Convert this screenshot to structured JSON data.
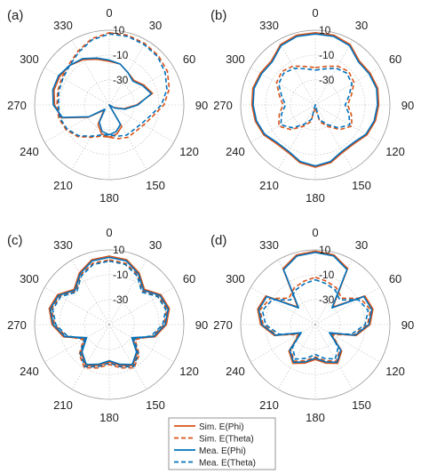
{
  "figure": {
    "legend_entries": [
      {
        "label": "Sim. E(Phi)",
        "color": "#d95319",
        "dash": "solid"
      },
      {
        "label": "Sim. E(Theta)",
        "color": "#d95319",
        "dash": "dashed"
      },
      {
        "label": "Mea. E(Phi)",
        "color": "#0072bd",
        "dash": "solid"
      },
      {
        "label": "Mea. E(Theta)",
        "color": "#0072bd",
        "dash": "dashed"
      }
    ]
  },
  "chart_data": [
    {
      "type": "polar-line",
      "panel_label": "(a)",
      "theta_ticks": [
        "0",
        "30",
        "60",
        "90",
        "120",
        "150",
        "180",
        "210",
        "240",
        "270",
        "300",
        "330"
      ],
      "r_ticks": [
        "10",
        "-10",
        "-30"
      ],
      "r_tick_values": [
        10,
        -10,
        -30
      ],
      "rlim": [
        -50,
        10
      ],
      "grid": true,
      "series": [
        {
          "name": "Sim. E(Phi)",
          "angles": [
            0,
            15,
            30,
            45,
            60,
            75,
            90,
            105,
            120,
            135,
            150,
            165,
            180,
            195,
            210,
            225,
            240,
            255,
            270,
            285,
            300,
            315,
            330,
            345
          ],
          "values": [
            -15,
            -16,
            -20,
            -22,
            -18,
            -14,
            -28,
            -38,
            -46,
            -50,
            -30,
            -26,
            -24,
            -26,
            -32,
            -44,
            -30,
            -10,
            -6,
            -4,
            -4,
            -5,
            -8,
            -12
          ]
        },
        {
          "name": "Sim. E(Theta)",
          "angles": [
            0,
            15,
            30,
            45,
            60,
            75,
            90,
            105,
            120,
            135,
            150,
            165,
            180,
            195,
            210,
            225,
            240,
            255,
            270,
            285,
            300,
            315,
            330,
            345
          ],
          "values": [
            8,
            8,
            7,
            6,
            4,
            0,
            -6,
            -14,
            -18,
            -20,
            -20,
            -22,
            -24,
            -24,
            -20,
            -14,
            -10,
            -8,
            -8,
            -7,
            -6,
            -4,
            0,
            5
          ]
        },
        {
          "name": "Mea. E(Phi)",
          "angles": [
            0,
            15,
            30,
            45,
            60,
            75,
            90,
            105,
            120,
            135,
            150,
            165,
            180,
            195,
            210,
            225,
            240,
            255,
            270,
            285,
            300,
            315,
            330,
            345
          ],
          "values": [
            -14,
            -16,
            -20,
            -23,
            -19,
            -15,
            -27,
            -37,
            -45,
            -50,
            -32,
            -28,
            -26,
            -28,
            -34,
            -45,
            -31,
            -11,
            -5,
            -3,
            -3,
            -5,
            -7,
            -11
          ]
        },
        {
          "name": "Mea. E(Theta)",
          "angles": [
            0,
            15,
            30,
            45,
            60,
            75,
            90,
            105,
            120,
            135,
            150,
            165,
            180,
            195,
            210,
            225,
            240,
            255,
            270,
            285,
            300,
            315,
            330,
            345
          ],
          "values": [
            7,
            7,
            6,
            5,
            2,
            -2,
            -8,
            -16,
            -20,
            -22,
            -22,
            -24,
            -26,
            -25,
            -21,
            -15,
            -11,
            -9,
            -9,
            -8,
            -7,
            -5,
            -1,
            4
          ]
        }
      ]
    },
    {
      "type": "polar-line",
      "panel_label": "(b)",
      "theta_ticks": [
        "0",
        "30",
        "60",
        "90",
        "120",
        "150",
        "180",
        "210",
        "240",
        "270",
        "300",
        "330"
      ],
      "r_ticks": [
        "10",
        "-10",
        "-30"
      ],
      "r_tick_values": [
        10,
        -10,
        -30
      ],
      "rlim": [
        -50,
        10
      ],
      "grid": true,
      "series": [
        {
          "name": "Sim. E(Phi)",
          "angles": [
            0,
            15,
            30,
            45,
            60,
            75,
            90,
            105,
            120,
            135,
            150,
            165,
            180,
            195,
            210,
            225,
            240,
            255,
            270,
            285,
            300,
            315,
            330,
            345
          ],
          "values": [
            8,
            8,
            6,
            0,
            1,
            2,
            1,
            0,
            -2,
            -6,
            -6,
            -2,
            0,
            -2,
            -6,
            -6,
            -2,
            0,
            1,
            2,
            1,
            0,
            6,
            8
          ]
        },
        {
          "name": "Sim. E(Theta)",
          "angles": [
            0,
            15,
            30,
            45,
            60,
            75,
            90,
            105,
            120,
            135,
            150,
            165,
            180,
            195,
            210,
            225,
            240,
            255,
            270,
            285,
            300,
            315,
            330,
            345
          ],
          "values": [
            -20,
            -18,
            -14,
            -12,
            -14,
            -20,
            -24,
            -20,
            -16,
            -22,
            -30,
            -36,
            -48,
            -36,
            -30,
            -22,
            -16,
            -20,
            -24,
            -20,
            -14,
            -12,
            -14,
            -18
          ]
        },
        {
          "name": "Mea. E(Phi)",
          "angles": [
            0,
            15,
            30,
            45,
            60,
            75,
            90,
            105,
            120,
            135,
            150,
            165,
            180,
            195,
            210,
            225,
            240,
            255,
            270,
            285,
            300,
            315,
            330,
            345
          ],
          "values": [
            7,
            7,
            5,
            -1,
            0,
            1,
            0,
            -1,
            -3,
            -7,
            -7,
            -3,
            -1,
            -3,
            -7,
            -7,
            -3,
            -1,
            0,
            1,
            0,
            -1,
            5,
            7
          ]
        },
        {
          "name": "Mea. E(Theta)",
          "angles": [
            0,
            15,
            30,
            45,
            60,
            75,
            90,
            105,
            120,
            135,
            150,
            165,
            180,
            195,
            210,
            225,
            240,
            255,
            270,
            285,
            300,
            315,
            330,
            345
          ],
          "values": [
            -22,
            -20,
            -16,
            -14,
            -16,
            -22,
            -26,
            -22,
            -18,
            -24,
            -32,
            -38,
            -50,
            -38,
            -32,
            -24,
            -18,
            -22,
            -26,
            -22,
            -16,
            -14,
            -16,
            -20
          ]
        }
      ]
    },
    {
      "type": "polar-line",
      "panel_label": "(c)",
      "theta_ticks": [
        "0",
        "30",
        "60",
        "90",
        "120",
        "150",
        "180",
        "210",
        "240",
        "270",
        "300",
        "330"
      ],
      "r_ticks": [
        "10",
        "-10",
        "-30"
      ],
      "r_tick_values": [
        10,
        -10,
        -30
      ],
      "rlim": [
        -50,
        10
      ],
      "grid": true,
      "series": [
        {
          "name": "Sim. E(Phi)",
          "angles": [
            0,
            15,
            30,
            45,
            60,
            75,
            90,
            105,
            120,
            135,
            150,
            165,
            180,
            195,
            210,
            225,
            240,
            255,
            270,
            285,
            300,
            315,
            330,
            345
          ],
          "values": [
            5,
            4,
            -2,
            -10,
            -2,
            0,
            -4,
            -12,
            -28,
            -18,
            -12,
            -16,
            -20,
            -16,
            -12,
            -18,
            -28,
            -12,
            -4,
            0,
            -2,
            -10,
            -2,
            4
          ]
        },
        {
          "name": "Sim. E(Theta)",
          "angles": [
            0,
            15,
            30,
            45,
            60,
            75,
            90,
            105,
            120,
            135,
            150,
            165,
            180,
            195,
            210,
            225,
            240,
            255,
            270,
            285,
            300,
            315,
            330,
            345
          ],
          "values": [
            2,
            1,
            -4,
            -12,
            -4,
            -2,
            -6,
            -14,
            -26,
            -16,
            -10,
            -14,
            -18,
            -14,
            -10,
            -16,
            -26,
            -14,
            -6,
            -2,
            -4,
            -12,
            -4,
            1
          ]
        },
        {
          "name": "Mea. E(Phi)",
          "angles": [
            0,
            15,
            30,
            45,
            60,
            75,
            90,
            105,
            120,
            135,
            150,
            165,
            180,
            195,
            210,
            225,
            240,
            255,
            270,
            285,
            300,
            315,
            330,
            345
          ],
          "values": [
            4,
            3,
            -3,
            -11,
            -3,
            -1,
            -5,
            -13,
            -29,
            -19,
            -13,
            -17,
            -21,
            -17,
            -13,
            -19,
            -29,
            -13,
            -5,
            -1,
            -3,
            -11,
            -3,
            3
          ]
        },
        {
          "name": "Mea. E(Theta)",
          "angles": [
            0,
            15,
            30,
            45,
            60,
            75,
            90,
            105,
            120,
            135,
            150,
            165,
            180,
            195,
            210,
            225,
            240,
            255,
            270,
            285,
            300,
            315,
            330,
            345
          ],
          "values": [
            1,
            0,
            -5,
            -13,
            -5,
            -3,
            -7,
            -15,
            -27,
            -17,
            -11,
            -15,
            -19,
            -15,
            -11,
            -17,
            -27,
            -15,
            -7,
            -3,
            -5,
            -13,
            -5,
            0
          ]
        }
      ]
    },
    {
      "type": "polar-line",
      "panel_label": "(d)",
      "theta_ticks": [
        "0",
        "30",
        "60",
        "90",
        "120",
        "150",
        "180",
        "210",
        "240",
        "270",
        "300",
        "330"
      ],
      "r_ticks": [
        "10",
        "-10",
        "-30"
      ],
      "r_tick_values": [
        10,
        -10,
        -30
      ],
      "rlim": [
        -50,
        10
      ],
      "grid": true,
      "series": [
        {
          "name": "Sim. E(Phi)",
          "angles": [
            0,
            15,
            30,
            45,
            60,
            75,
            90,
            105,
            120,
            135,
            150,
            165,
            180,
            195,
            210,
            225,
            240,
            255,
            270,
            285,
            300,
            315,
            330,
            345
          ],
          "values": [
            9,
            8,
            2,
            -30,
            -4,
            -2,
            -6,
            -16,
            -36,
            -20,
            -14,
            -18,
            -22,
            -18,
            -14,
            -20,
            -36,
            -16,
            -6,
            -2,
            -4,
            -30,
            2,
            8
          ]
        },
        {
          "name": "Sim. E(Theta)",
          "angles": [
            0,
            15,
            30,
            45,
            60,
            75,
            90,
            105,
            120,
            135,
            150,
            165,
            180,
            195,
            210,
            225,
            240,
            255,
            270,
            285,
            300,
            315,
            330,
            345
          ],
          "values": [
            -12,
            -14,
            -16,
            -20,
            -8,
            -4,
            -8,
            -18,
            -34,
            -22,
            -16,
            -20,
            -24,
            -20,
            -16,
            -22,
            -34,
            -18,
            -8,
            -4,
            -8,
            -20,
            -16,
            -14
          ]
        },
        {
          "name": "Mea. E(Phi)",
          "angles": [
            0,
            15,
            30,
            45,
            60,
            75,
            90,
            105,
            120,
            135,
            150,
            165,
            180,
            195,
            210,
            225,
            240,
            255,
            270,
            285,
            300,
            315,
            330,
            345
          ],
          "values": [
            8,
            7,
            1,
            -31,
            -5,
            -3,
            -7,
            -17,
            -37,
            -21,
            -15,
            -19,
            -23,
            -19,
            -15,
            -21,
            -37,
            -17,
            -7,
            -3,
            -5,
            -31,
            1,
            7
          ]
        },
        {
          "name": "Mea. E(Theta)",
          "angles": [
            0,
            15,
            30,
            45,
            60,
            75,
            90,
            105,
            120,
            135,
            150,
            165,
            180,
            195,
            210,
            225,
            240,
            255,
            270,
            285,
            300,
            315,
            330,
            345
          ],
          "values": [
            -14,
            -16,
            -18,
            -22,
            -10,
            -6,
            -10,
            -20,
            -36,
            -24,
            -18,
            -22,
            -26,
            -22,
            -18,
            -24,
            -36,
            -20,
            -10,
            -6,
            -10,
            -22,
            -18,
            -16
          ]
        }
      ]
    }
  ]
}
